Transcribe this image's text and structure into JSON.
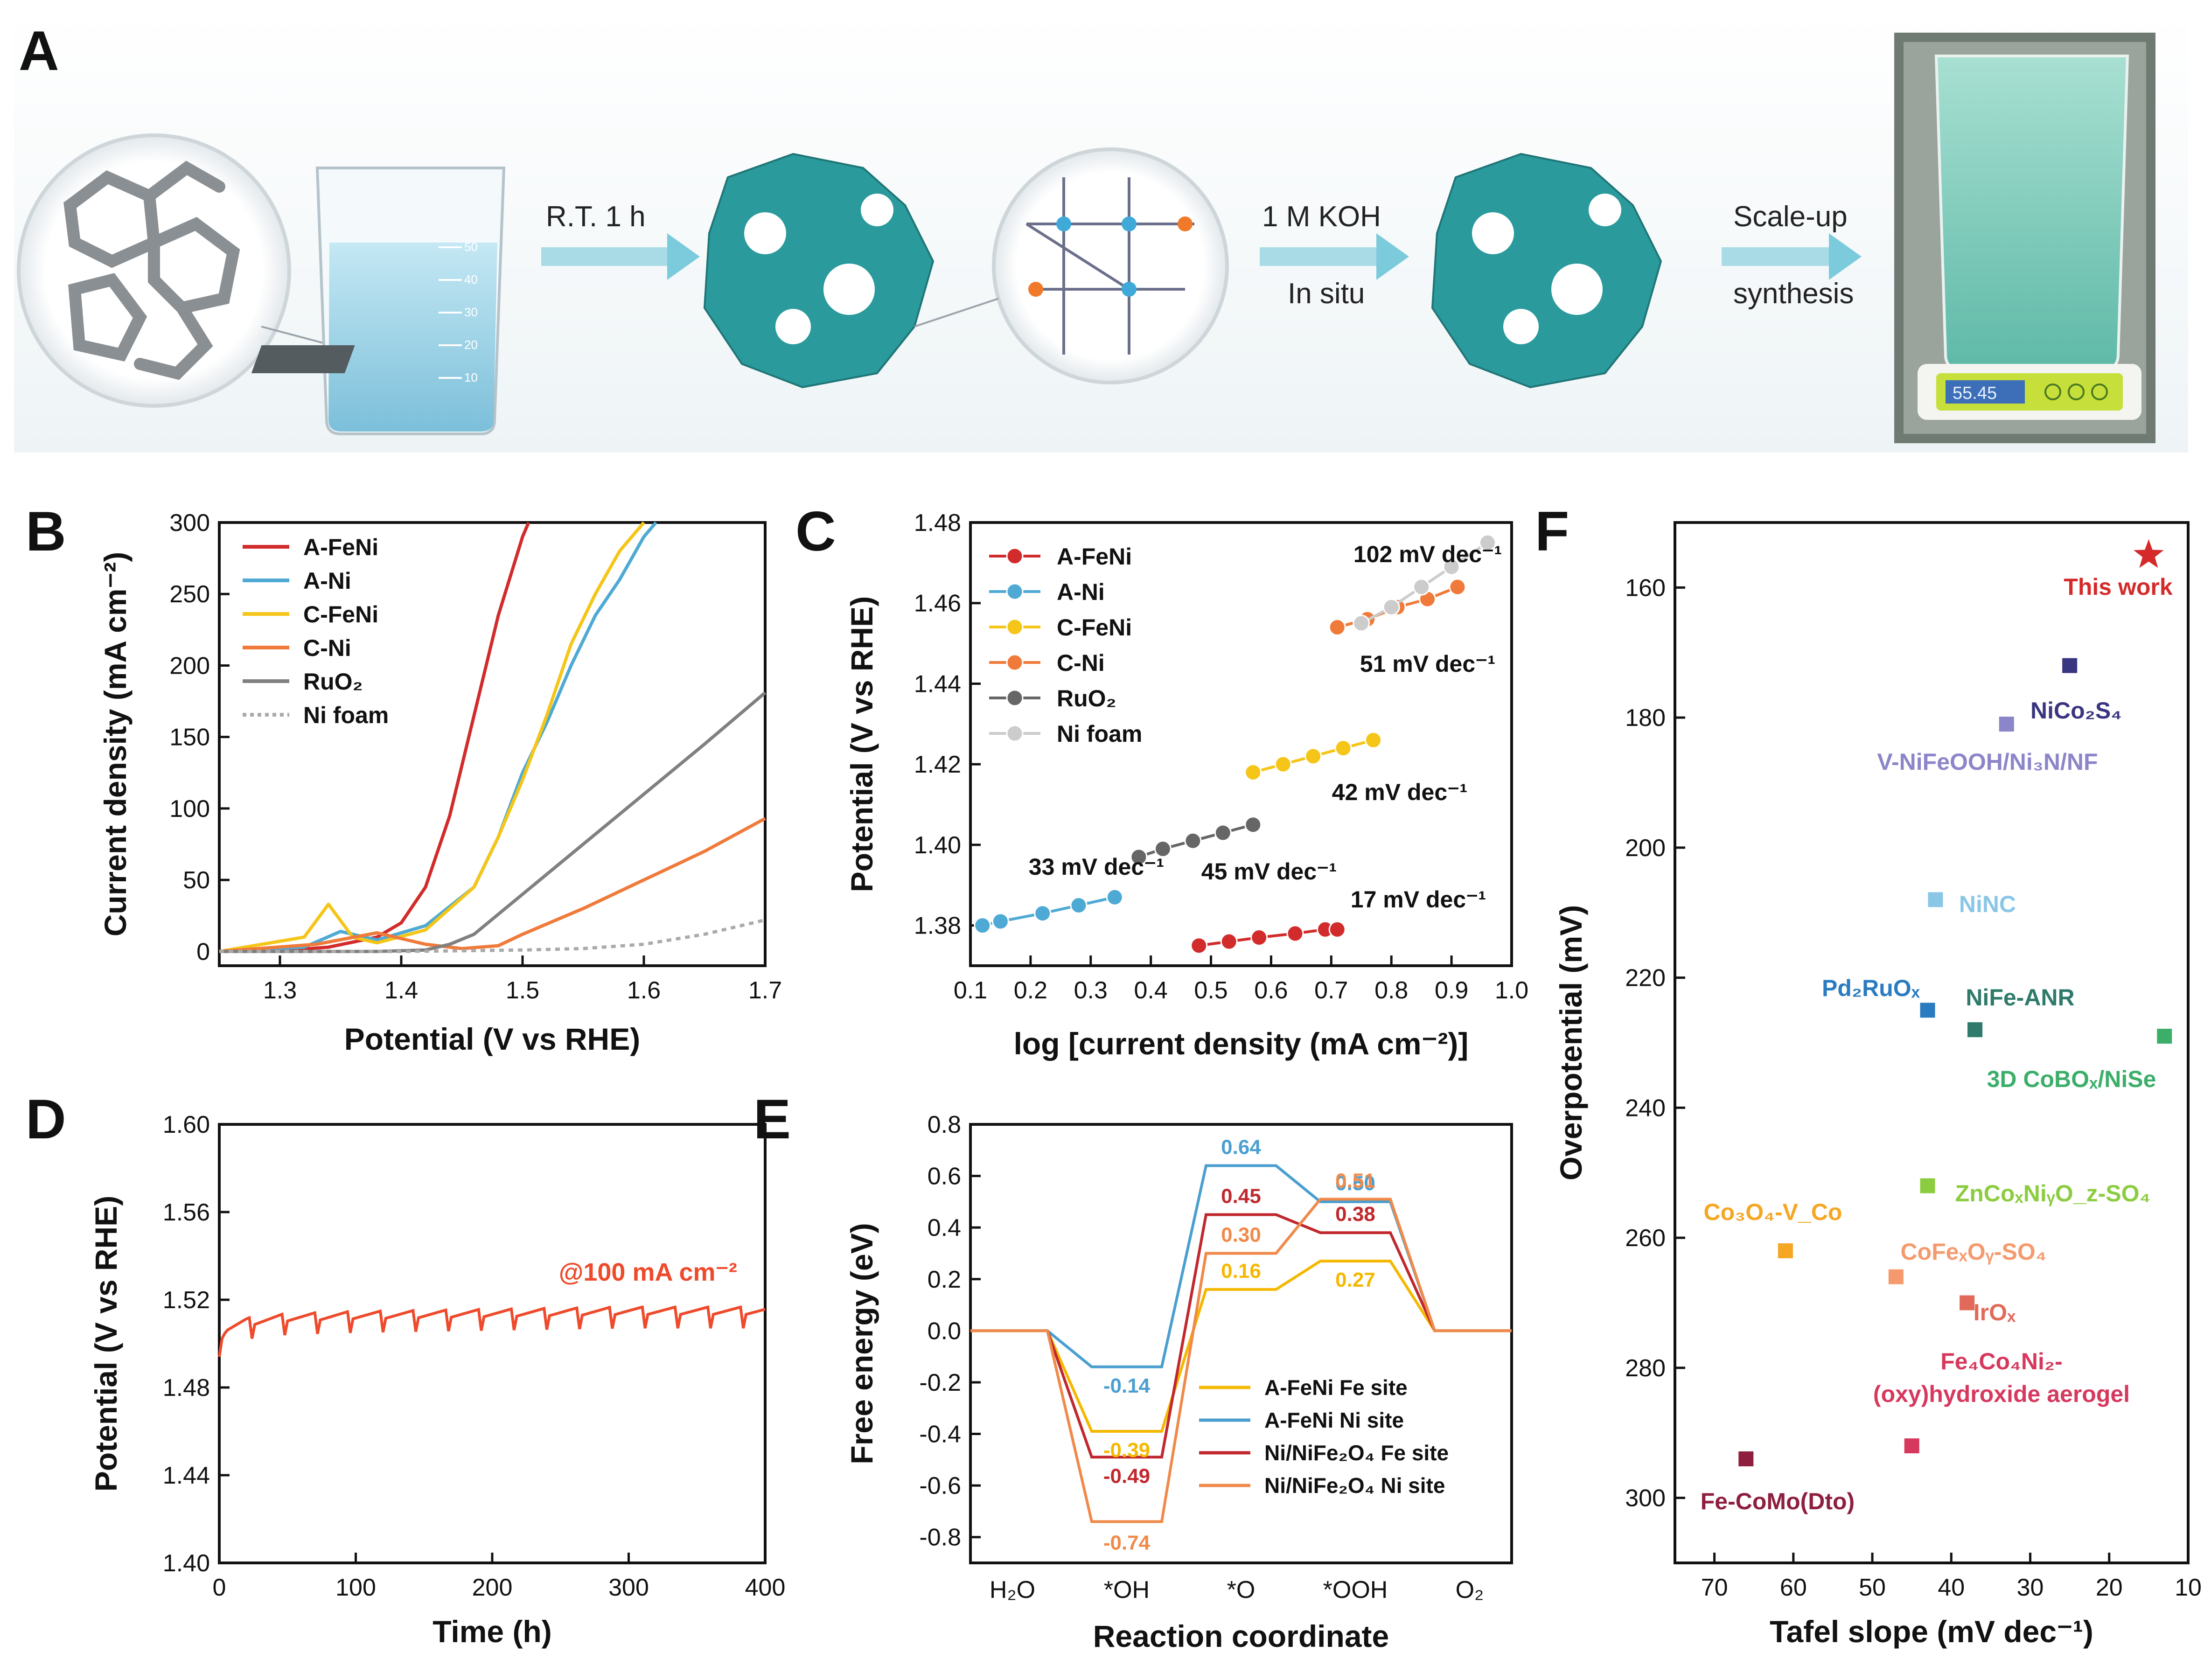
{
  "panel_a": {
    "letter": "A",
    "step1": "R.T. 1 h",
    "step2_line1": "1 M KOH",
    "step2_line2": "In situ",
    "step3_line1": "Scale-up",
    "step3_line2": "synthesis",
    "beaker_ticks": [
      "50",
      "40",
      "30",
      "20",
      "10"
    ],
    "scale_reading": "55.45",
    "colors": {
      "crystal": "#2a9a9c",
      "liquid": "#9fd3e8",
      "powder": "#7fcfc0",
      "arrow": "#8fd0df"
    }
  },
  "chart_data": [
    {
      "panel": "B",
      "type": "line",
      "xlabel": "Potential (V vs RHE)",
      "ylabel": "Current density (mA cm⁻²)",
      "xlim": [
        1.25,
        1.7
      ],
      "ylim": [
        -10,
        300
      ],
      "xticks": [
        "1.3",
        "1.4",
        "1.5",
        "1.6",
        "1.7"
      ],
      "yticks": [
        "0",
        "50",
        "100",
        "150",
        "200",
        "250",
        "300"
      ],
      "legend_position": "top-left",
      "series": [
        {
          "name": "A-FeNi",
          "color": "#d22b2b",
          "x": [
            1.25,
            1.3,
            1.34,
            1.38,
            1.4,
            1.42,
            1.44,
            1.46,
            1.48,
            1.5,
            1.505
          ],
          "y": [
            0,
            0.5,
            3,
            10,
            20,
            45,
            95,
            165,
            235,
            290,
            300
          ]
        },
        {
          "name": "A-Ni",
          "color": "#4eaad4",
          "x": [
            1.25,
            1.32,
            1.35,
            1.38,
            1.42,
            1.46,
            1.48,
            1.5,
            1.52,
            1.54,
            1.56,
            1.58,
            1.6,
            1.61
          ],
          "y": [
            0,
            3,
            14,
            8,
            18,
            45,
            80,
            125,
            160,
            200,
            235,
            260,
            290,
            300
          ]
        },
        {
          "name": "C-FeNi",
          "color": "#f5c518",
          "x": [
            1.25,
            1.32,
            1.34,
            1.36,
            1.38,
            1.42,
            1.46,
            1.48,
            1.5,
            1.52,
            1.54,
            1.56,
            1.58,
            1.6
          ],
          "y": [
            0,
            10,
            33,
            10,
            6,
            15,
            45,
            80,
            120,
            165,
            215,
            250,
            280,
            300
          ]
        },
        {
          "name": "C-Ni",
          "color": "#f07a3a",
          "x": [
            1.25,
            1.33,
            1.38,
            1.42,
            1.45,
            1.48,
            1.5,
            1.55,
            1.6,
            1.65,
            1.7
          ],
          "y": [
            0,
            5,
            13,
            5,
            2,
            4,
            12,
            30,
            50,
            70,
            93
          ]
        },
        {
          "name": "RuO₂",
          "color": "#808080",
          "x": [
            1.25,
            1.38,
            1.42,
            1.44,
            1.46,
            1.5,
            1.55,
            1.6,
            1.65,
            1.7
          ],
          "y": [
            0,
            0,
            1,
            5,
            12,
            40,
            75,
            110,
            145,
            181
          ]
        },
        {
          "name": "Ni foam",
          "color": "#aaaaaa",
          "dashed": true,
          "x": [
            1.25,
            1.4,
            1.5,
            1.55,
            1.6,
            1.65,
            1.7
          ],
          "y": [
            0,
            0,
            1,
            2,
            5,
            12,
            22
          ]
        }
      ]
    },
    {
      "panel": "C",
      "type": "line",
      "xlabel": "log [current density (mA cm⁻²)]",
      "ylabel": "Potential (V vs RHE)",
      "xlim": [
        0.1,
        1.0
      ],
      "ylim": [
        1.37,
        1.48
      ],
      "xticks": [
        "0.1",
        "0.2",
        "0.3",
        "0.4",
        "0.5",
        "0.6",
        "0.7",
        "0.8",
        "0.9",
        "1.0"
      ],
      "yticks": [
        "1.38",
        "1.40",
        "1.42",
        "1.44",
        "1.46",
        "1.48"
      ],
      "legend_position": "top-left",
      "series": [
        {
          "name": "A-FeNi",
          "color": "#d22b2b",
          "x": [
            0.48,
            0.53,
            0.58,
            0.64,
            0.69,
            0.71
          ],
          "y": [
            1.375,
            1.376,
            1.377,
            1.378,
            1.379,
            1.379
          ]
        },
        {
          "name": "A-Ni",
          "color": "#4eaad4",
          "x": [
            0.12,
            0.15,
            0.22,
            0.28,
            0.34
          ],
          "y": [
            1.38,
            1.381,
            1.383,
            1.385,
            1.387
          ]
        },
        {
          "name": "C-FeNi",
          "color": "#f5c518",
          "x": [
            0.57,
            0.62,
            0.67,
            0.72,
            0.77
          ],
          "y": [
            1.418,
            1.42,
            1.422,
            1.424,
            1.426
          ]
        },
        {
          "name": "C-Ni",
          "color": "#f07a3a",
          "x": [
            0.71,
            0.76,
            0.81,
            0.86,
            0.91
          ],
          "y": [
            1.454,
            1.456,
            1.459,
            1.461,
            1.464
          ]
        },
        {
          "name": "RuO₂",
          "color": "#666666",
          "x": [
            0.38,
            0.42,
            0.47,
            0.52,
            0.57
          ],
          "y": [
            1.397,
            1.399,
            1.401,
            1.403,
            1.405
          ]
        },
        {
          "name": "Ni foam",
          "color": "#cccccc",
          "x": [
            0.75,
            0.8,
            0.85,
            0.9,
            0.96
          ],
          "y": [
            1.455,
            1.459,
            1.464,
            1.469,
            1.475
          ]
        }
      ],
      "annotations": [
        "102 mV dec⁻¹",
        "51 mV dec⁻¹",
        "42 mV dec⁻¹",
        "45 mV dec⁻¹",
        "33 mV dec⁻¹",
        "17 mV dec⁻¹"
      ]
    },
    {
      "panel": "D",
      "type": "line",
      "xlabel": "Time (h)",
      "ylabel": "Potential (V vs RHE)",
      "xlim": [
        0,
        400
      ],
      "ylim": [
        1.4,
        1.6
      ],
      "xticks": [
        "0",
        "100",
        "200",
        "300",
        "400"
      ],
      "yticks": [
        "1.40",
        "1.44",
        "1.48",
        "1.52",
        "1.56",
        "1.60"
      ],
      "annotation": "@100 mA cm⁻²",
      "series": [
        {
          "name": "",
          "color": "#ee4a2b",
          "x": [
            0,
            5,
            20,
            50,
            100,
            200,
            300,
            400
          ],
          "y": [
            1.5,
            1.505,
            1.508,
            1.51,
            1.511,
            1.512,
            1.513,
            1.513
          ]
        }
      ]
    },
    {
      "panel": "E",
      "type": "line",
      "xlabel": "Reaction coordinate",
      "ylabel": "Free energy (eV)",
      "categories": [
        "H₂O",
        "*OH",
        "*O",
        "*OOH",
        "O₂"
      ],
      "ylim": [
        -0.9,
        0.8
      ],
      "yticks": [
        "-0.8",
        "-0.6",
        "-0.4",
        "-0.2",
        "0.0",
        "0.2",
        "0.4",
        "0.6",
        "0.8"
      ],
      "legend_position": "bottom-right",
      "series": [
        {
          "name": "A-FeNi Fe site",
          "color": "#f5b800",
          "values": [
            0,
            -0.39,
            0.16,
            0.27,
            0
          ],
          "labels": [
            "",
            "-0.39",
            "0.16",
            "0.27",
            ""
          ]
        },
        {
          "name": "A-FeNi Ni site",
          "color": "#4a9fd0",
          "values": [
            0,
            -0.14,
            0.64,
            0.5,
            0
          ],
          "labels": [
            "",
            "-0.14",
            "0.64",
            "0.50",
            ""
          ]
        },
        {
          "name": "Ni/NiFe₂O₄ Fe site",
          "color": "#c0282d",
          "values": [
            0,
            -0.49,
            0.45,
            0.38,
            0
          ],
          "labels": [
            "",
            "-0.49",
            "0.45",
            "0.38",
            ""
          ]
        },
        {
          "name": "Ni/NiFe₂O₄ Ni site",
          "color": "#f08a4b",
          "values": [
            0,
            -0.74,
            0.3,
            0.51,
            0
          ],
          "labels": [
            "",
            "-0.74",
            "0.30",
            "0.51",
            ""
          ]
        }
      ]
    },
    {
      "panel": "F",
      "type": "scatter",
      "xlabel": "Tafel slope (mV dec⁻¹)",
      "ylabel": "Overpotential (mV)",
      "xlim": [
        75,
        10
      ],
      "ylim": [
        310,
        150
      ],
      "xticks": [
        "70",
        "60",
        "50",
        "40",
        "30",
        "20",
        "10"
      ],
      "yticks": [
        "160",
        "180",
        "200",
        "220",
        "240",
        "260",
        "280",
        "300"
      ],
      "points": [
        {
          "label": "This work",
          "x": 15,
          "y": 155,
          "color": "#d42a2a",
          "marker": "star"
        },
        {
          "label": "NiCo₂S₄",
          "x": 25,
          "y": 172,
          "color": "#3a3580",
          "marker": "square"
        },
        {
          "label": "V-NiFeOOH/Ni₃N/NF",
          "x": 33,
          "y": 181,
          "color": "#8b85c9",
          "marker": "square"
        },
        {
          "label": "NiNC",
          "x": 42,
          "y": 208,
          "color": "#8ac6e6",
          "marker": "square"
        },
        {
          "label": "Pd₂RuOₓ",
          "x": 43,
          "y": 225,
          "color": "#2a7bc0",
          "marker": "square"
        },
        {
          "label": "NiFe-ANR",
          "x": 37,
          "y": 228,
          "color": "#2f7a6a",
          "marker": "square"
        },
        {
          "label": "3D CoBOₓ/NiSe",
          "x": 13,
          "y": 229,
          "color": "#3cae6a",
          "marker": "square"
        },
        {
          "label": "ZnCoₓNiᵧO_z-SO₄",
          "x": 43,
          "y": 252,
          "color": "#8ccc40",
          "marker": "square"
        },
        {
          "label": "Co₃O₄-V_Co",
          "x": 61,
          "y": 262,
          "color": "#f5a623",
          "marker": "square"
        },
        {
          "label": "CoFeₓOᵧ-SO₄",
          "x": 47,
          "y": 266,
          "color": "#f59a6e",
          "marker": "square"
        },
        {
          "label": "IrOₓ",
          "x": 38,
          "y": 270,
          "color": "#e26a5a",
          "marker": "square"
        },
        {
          "label": "Fe₄Co₄Ni₂-(oxy)hydroxide aerogel",
          "x": 45,
          "y": 292,
          "color": "#d6385e",
          "marker": "square"
        },
        {
          "label": "Fe-CoMo(Dto)",
          "x": 66,
          "y": 294,
          "color": "#8e1f3f",
          "marker": "square"
        }
      ]
    }
  ]
}
